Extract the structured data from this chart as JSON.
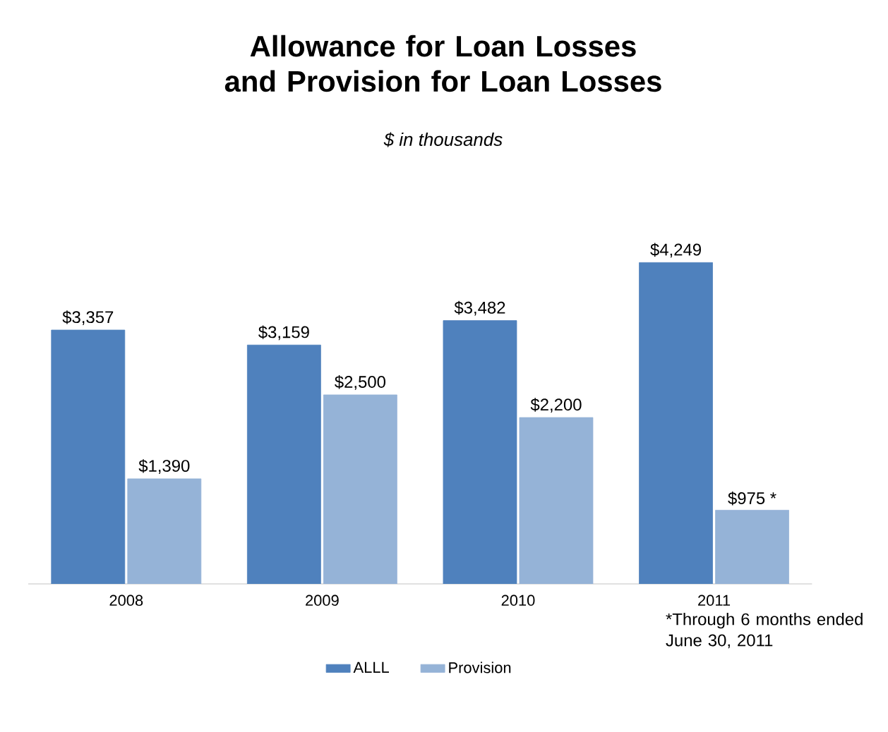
{
  "chart_data": {
    "type": "bar",
    "title": "Allowance for Loan Losses and Provision for Loan Losses",
    "subtitle": "*$ in thousands*",
    "categories": [
      "2008",
      "2009",
      "2010",
      "2011"
    ],
    "series": [
      {
        "name": "ALLL",
        "color": "#4f81bd",
        "values": [
          3357,
          3159,
          3482,
          4249
        ],
        "value_labels": [
          "$3,357",
          "$3,159",
          "$3,482",
          "$4,249"
        ]
      },
      {
        "name": "Provision",
        "color": "#95b3d7",
        "values": [
          1390,
          2500,
          2200,
          975
        ],
        "value_labels": [
          "$1,390",
          "$2,500",
          "$2,200",
          "$975 *"
        ]
      }
    ],
    "annotations": [
      "*Through 6 months ended June 30, 2011"
    ],
    "legend": "bottom"
  }
}
